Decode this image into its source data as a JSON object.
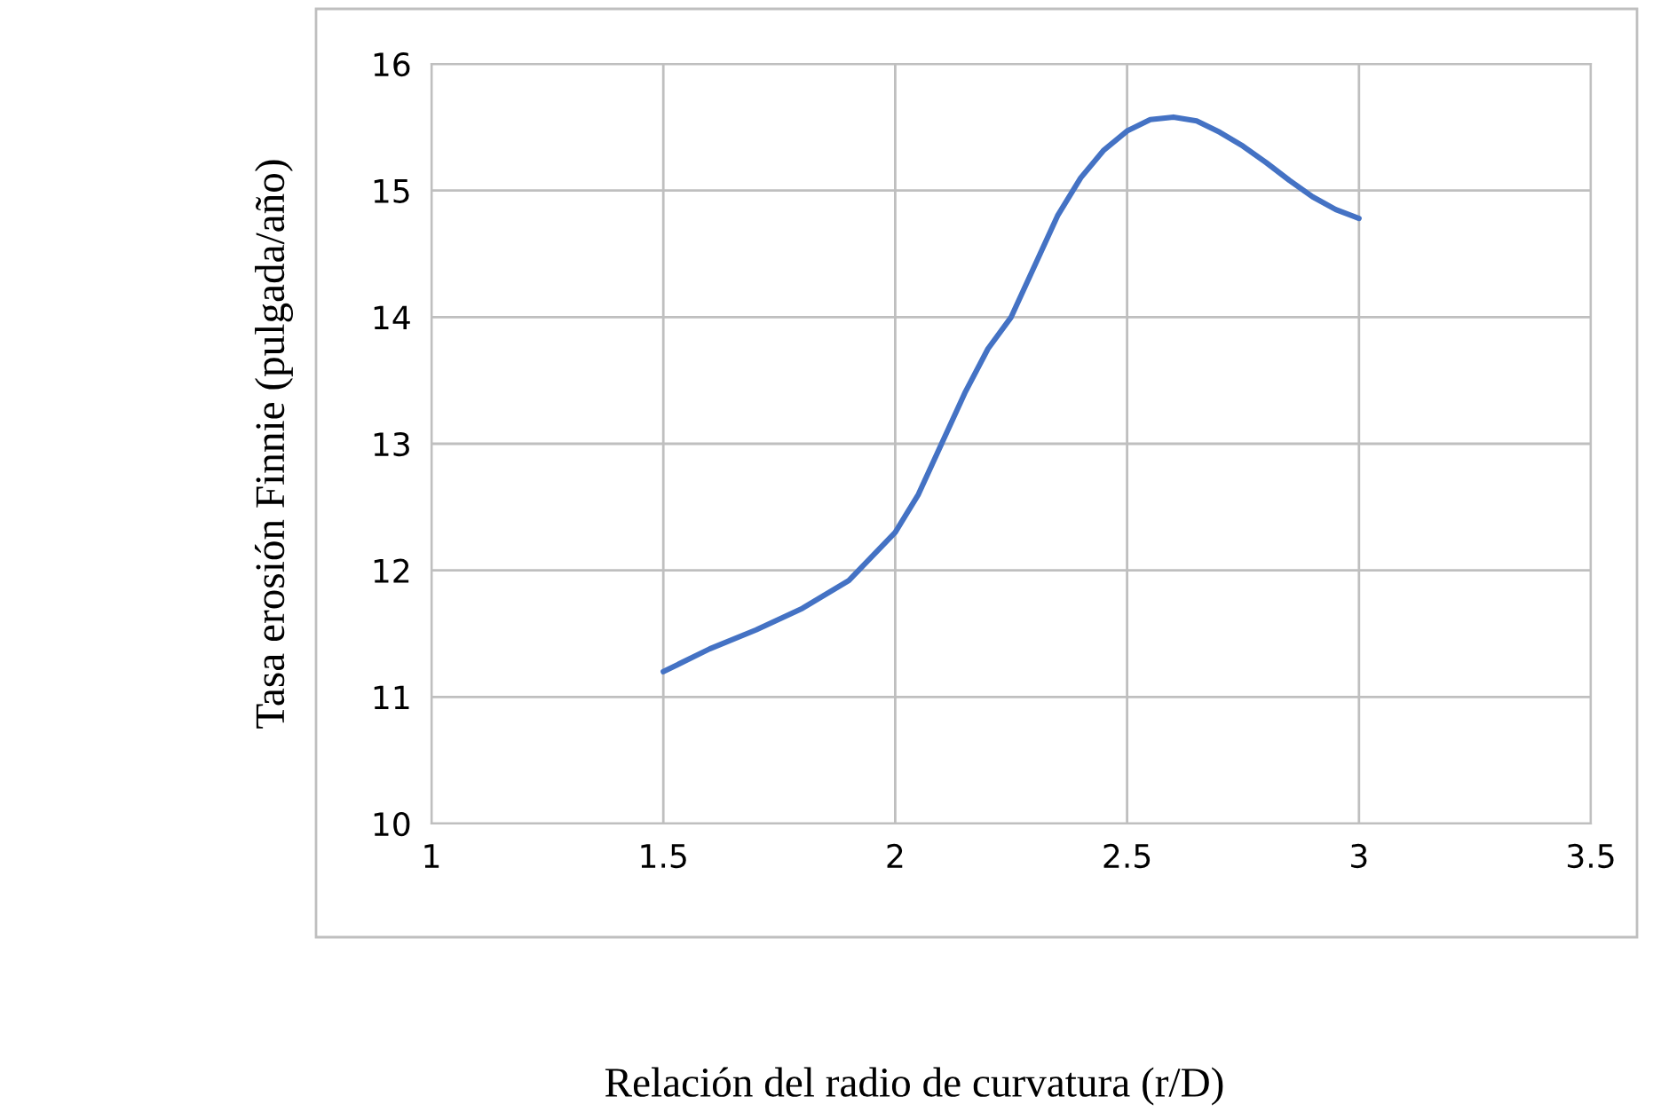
{
  "chart_data": {
    "type": "line",
    "xlabel": "Relación del radio de curvatura (r/D)",
    "ylabel": "Tasa erosión Finnie (pulgada/año)",
    "series": [
      {
        "color": "#4472c4",
        "x": [
          1.5,
          1.6,
          1.7,
          1.8,
          1.9,
          2.0,
          2.05,
          2.1,
          2.15,
          2.2,
          2.25,
          2.3,
          2.35,
          2.4,
          2.45,
          2.5,
          2.55,
          2.6,
          2.65,
          2.7,
          2.75,
          2.8,
          2.85,
          2.9,
          2.95,
          3.0
        ],
        "values": [
          11.2,
          11.38,
          11.53,
          11.7,
          11.92,
          12.3,
          12.6,
          13.0,
          13.4,
          13.75,
          14.0,
          14.4,
          14.8,
          15.1,
          15.32,
          15.47,
          15.56,
          15.58,
          15.55,
          15.46,
          15.35,
          15.22,
          15.08,
          14.95,
          14.85,
          14.78
        ]
      }
    ],
    "xlim": [
      1,
      3.5
    ],
    "xticks": [
      1,
      1.5,
      2,
      2.5,
      3,
      3.5
    ],
    "ylim": [
      10,
      16
    ],
    "yticks": [
      10,
      11,
      12,
      13,
      14,
      15,
      16
    ],
    "grid": true,
    "legend": false,
    "marker": "none",
    "line_style": "solid"
  }
}
